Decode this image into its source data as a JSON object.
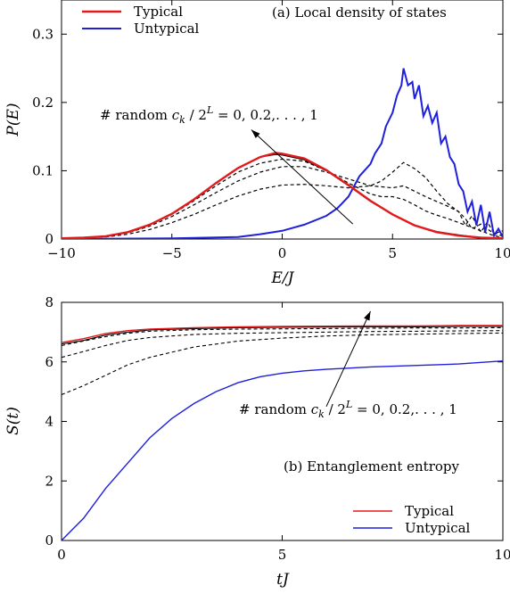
{
  "chart_data": [
    {
      "id": "a",
      "type": "line",
      "title": "(a) Local density of states",
      "xlabel": "E/J",
      "ylabel": "P(E)",
      "xlim": [
        -10,
        10
      ],
      "ylim": [
        0,
        0.35
      ],
      "xticks": [
        -10,
        -5,
        0,
        5,
        10
      ],
      "xtick_labels": [
        "−10",
        "−5",
        "0",
        "5",
        "10"
      ],
      "yticks": [
        0,
        0.1,
        0.2,
        0.3
      ],
      "ytick_labels": [
        "0",
        "0.1",
        "0.2",
        "0.3"
      ],
      "grid": false,
      "legend_position": "top-left",
      "annotation": {
        "prefix": "# random",
        "expr": "c",
        "sub": "k",
        "mid": " / 2",
        "sup": "L",
        "suffix": " = 0,  0.2,. . . ,  1",
        "arrow_from": [
          3.2,
          0.022
        ],
        "arrow_to": [
          -1.4,
          0.16
        ]
      },
      "series": [
        {
          "name": "Typical",
          "color": "#e31a1c",
          "width": 2.4,
          "dash": "",
          "x": [
            -10,
            -9,
            -8,
            -7,
            -6,
            -5,
            -4,
            -3,
            -2,
            -1,
            -0.3,
            0,
            1,
            2,
            3,
            4,
            5,
            6,
            7,
            8,
            9,
            10
          ],
          "y": [
            0.001,
            0.002,
            0.004,
            0.01,
            0.021,
            0.037,
            0.058,
            0.082,
            0.104,
            0.12,
            0.126,
            0.125,
            0.118,
            0.101,
            0.079,
            0.056,
            0.036,
            0.02,
            0.01,
            0.005,
            0.002,
            0.001
          ]
        },
        {
          "name": "",
          "color": "#000000",
          "width": 1.2,
          "dash": "",
          "x": [
            -10,
            -9,
            -8,
            -7,
            -6,
            -5,
            -4,
            -3,
            -2,
            -1,
            -0.3,
            0,
            1,
            2,
            3,
            4,
            5,
            6,
            7,
            8,
            9,
            10
          ],
          "y": [
            0.001,
            0.002,
            0.004,
            0.01,
            0.021,
            0.037,
            0.058,
            0.082,
            0.104,
            0.12,
            0.124,
            0.123,
            0.116,
            0.1,
            0.078,
            0.055,
            0.036,
            0.02,
            0.011,
            0.006,
            0.002,
            0.001
          ]
        },
        {
          "name": "",
          "color": "#000000",
          "width": 1.2,
          "dash": "4,3",
          "x": [
            -10,
            -9,
            -8,
            -7,
            -6,
            -5,
            -4,
            -3,
            -2,
            -1,
            0,
            1,
            2,
            3,
            4,
            4.5,
            5,
            5.5,
            6,
            6.5,
            7,
            7.5,
            8,
            8.5,
            9,
            9.5,
            10
          ],
          "y": [
            0.001,
            0.002,
            0.004,
            0.01,
            0.021,
            0.036,
            0.056,
            0.078,
            0.098,
            0.111,
            0.117,
            0.114,
            0.1,
            0.082,
            0.066,
            0.062,
            0.062,
            0.058,
            0.05,
            0.041,
            0.035,
            0.03,
            0.024,
            0.018,
            0.012,
            0.006,
            0.002
          ]
        },
        {
          "name": "",
          "color": "#000000",
          "width": 1.2,
          "dash": "4,3",
          "x": [
            -10,
            -9,
            -8,
            -7,
            -6,
            -5,
            -4,
            -3,
            -2,
            -1,
            0,
            1,
            2,
            3,
            4,
            5,
            5.5,
            6,
            6.5,
            7,
            7.5,
            8,
            8.3,
            8.6,
            9,
            9.5,
            10
          ],
          "y": [
            0.001,
            0.002,
            0.004,
            0.009,
            0.019,
            0.033,
            0.05,
            0.068,
            0.085,
            0.098,
            0.106,
            0.106,
            0.098,
            0.088,
            0.078,
            0.075,
            0.078,
            0.07,
            0.062,
            0.055,
            0.048,
            0.04,
            0.03,
            0.015,
            0.022,
            0.01,
            0.004
          ]
        },
        {
          "name": "",
          "color": "#000000",
          "width": 1.2,
          "dash": "4,3",
          "x": [
            -10,
            -9,
            -8,
            -7,
            -6,
            -5,
            -4,
            -3,
            -2,
            -1,
            0,
            1,
            2,
            3,
            4,
            4.5,
            5,
            5.5,
            6,
            6.5,
            7,
            7.5,
            8,
            8.3,
            8.6,
            9,
            9.3,
            9.6,
            10
          ],
          "y": [
            0.001,
            0.002,
            0.003,
            0.007,
            0.014,
            0.024,
            0.036,
            0.05,
            0.063,
            0.073,
            0.079,
            0.08,
            0.078,
            0.075,
            0.078,
            0.085,
            0.098,
            0.112,
            0.103,
            0.09,
            0.07,
            0.052,
            0.04,
            0.02,
            0.034,
            0.01,
            0.025,
            0.008,
            0.012
          ]
        },
        {
          "name": "Untypical",
          "color": "#1f1fdc",
          "width": 2.0,
          "dash": "",
          "x": [
            -10,
            -5,
            -2,
            -1,
            0,
            1,
            2,
            2.5,
            3,
            3.5,
            4,
            4.2,
            4.5,
            4.7,
            5,
            5.2,
            5.4,
            5.5,
            5.7,
            5.9,
            6,
            6.2,
            6.4,
            6.6,
            6.8,
            7,
            7.2,
            7.4,
            7.6,
            7.8,
            8,
            8.2,
            8.4,
            8.6,
            8.8,
            9,
            9.2,
            9.4,
            9.6,
            9.8,
            10
          ],
          "y": [
            0,
            0.001,
            0.003,
            0.007,
            0.012,
            0.021,
            0.034,
            0.045,
            0.062,
            0.092,
            0.11,
            0.125,
            0.14,
            0.165,
            0.185,
            0.21,
            0.225,
            0.25,
            0.225,
            0.23,
            0.205,
            0.225,
            0.18,
            0.195,
            0.17,
            0.185,
            0.14,
            0.15,
            0.12,
            0.11,
            0.08,
            0.07,
            0.04,
            0.055,
            0.02,
            0.05,
            0.01,
            0.04,
            0.005,
            0.015,
            0.003
          ]
        }
      ]
    },
    {
      "id": "b",
      "type": "line",
      "title": "(b) Entanglement entropy",
      "xlabel": "tJ",
      "ylabel": "S(t)",
      "xlim": [
        0,
        10
      ],
      "ylim": [
        0,
        8
      ],
      "xticks": [
        0,
        5,
        10
      ],
      "xtick_labels": [
        "0",
        "5",
        "10"
      ],
      "yticks": [
        0,
        2,
        4,
        6,
        8
      ],
      "ytick_labels": [
        "0",
        "2",
        "4",
        "6",
        "8"
      ],
      "grid": false,
      "legend_position": "bottom-right",
      "annotation": {
        "prefix": "# random",
        "expr": "c",
        "sub": "k",
        "mid": " / 2",
        "sup": "L",
        "suffix": " = 0,  0.2,. . . ,  1",
        "arrow_from": [
          6.0,
          4.5
        ],
        "arrow_to": [
          7.0,
          7.7
        ]
      },
      "series": [
        {
          "name": "Typical",
          "color": "#e31a1c",
          "width": 1.4,
          "dash": "",
          "x": [
            0,
            0.5,
            1,
            1.5,
            2,
            3,
            4,
            5,
            6,
            7,
            8,
            9,
            10
          ],
          "y": [
            6.65,
            6.78,
            6.95,
            7.05,
            7.1,
            7.15,
            7.18,
            7.19,
            7.2,
            7.21,
            7.21,
            7.22,
            7.22
          ]
        },
        {
          "name": "",
          "color": "#000000",
          "width": 1.1,
          "dash": "",
          "x": [
            0,
            0.5,
            1,
            1.5,
            2,
            3,
            4,
            5,
            6,
            7,
            8,
            9,
            10
          ],
          "y": [
            6.6,
            6.72,
            6.9,
            7.0,
            7.07,
            7.12,
            7.15,
            7.16,
            7.17,
            7.18,
            7.18,
            7.19,
            7.19
          ]
        },
        {
          "name": "",
          "color": "#000000",
          "width": 1.1,
          "dash": "4,3",
          "x": [
            0,
            0.5,
            1,
            1.5,
            2,
            3,
            4,
            5,
            6,
            7,
            8,
            9,
            10
          ],
          "y": [
            6.55,
            6.7,
            6.85,
            6.96,
            7.03,
            7.08,
            7.1,
            7.11,
            7.12,
            7.13,
            7.14,
            7.14,
            7.15
          ]
        },
        {
          "name": "",
          "color": "#000000",
          "width": 1.1,
          "dash": "4,3",
          "x": [
            0,
            0.5,
            1,
            1.5,
            2,
            3,
            4,
            5,
            6,
            7,
            8,
            9,
            10
          ],
          "y": [
            6.15,
            6.35,
            6.55,
            6.72,
            6.82,
            6.92,
            6.96,
            6.98,
            7.0,
            7.02,
            7.03,
            7.04,
            7.05
          ]
        },
        {
          "name": "",
          "color": "#000000",
          "width": 1.1,
          "dash": "4,3",
          "x": [
            0,
            0.5,
            1,
            1.5,
            2,
            3,
            4,
            5,
            6,
            7,
            8,
            9,
            10
          ],
          "y": [
            4.9,
            5.2,
            5.55,
            5.9,
            6.15,
            6.5,
            6.7,
            6.8,
            6.87,
            6.91,
            6.93,
            6.95,
            6.97
          ]
        },
        {
          "name": "Untypical",
          "color": "#1f1fdc",
          "width": 1.4,
          "dash": "",
          "x": [
            0,
            0.2,
            0.5,
            1,
            1.5,
            2,
            2.5,
            3,
            3.5,
            4,
            4.5,
            5,
            5.5,
            6,
            7,
            8,
            9,
            10
          ],
          "y": [
            0,
            0.3,
            0.75,
            1.75,
            2.6,
            3.45,
            4.1,
            4.6,
            5.0,
            5.3,
            5.5,
            5.62,
            5.7,
            5.75,
            5.83,
            5.88,
            5.93,
            6.03
          ]
        }
      ]
    }
  ]
}
